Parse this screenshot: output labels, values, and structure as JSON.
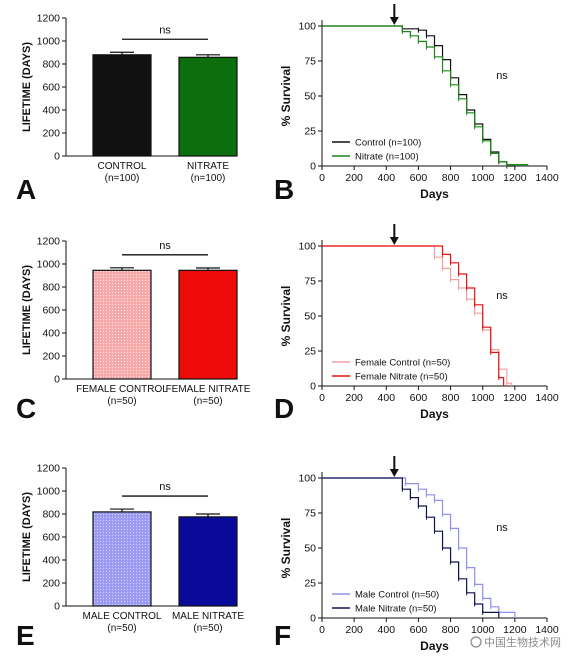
{
  "panels": [
    "A",
    "B",
    "C",
    "D",
    "E",
    "F"
  ],
  "watermark": "中国生物技术网",
  "colors": {
    "control": "#111111",
    "nitrate": "#1a7a1a",
    "female_control": "#f4a0a0",
    "female_nitrate": "#e81010",
    "male_control": "#9090f0",
    "male_nitrate": "#0a0a90",
    "male_nitrate_line": "#101050"
  },
  "chart_data": [
    {
      "type": "bar",
      "panel": "A",
      "categories": [
        "CONTROL",
        "NITRATE"
      ],
      "category_sublabels": [
        "(n=100)",
        "(n=100)"
      ],
      "values": [
        880,
        858
      ],
      "errors": [
        22,
        22
      ],
      "ylabel": "LIFETIME (DAYS)",
      "ylim": [
        0,
        1200
      ],
      "yticks": [
        0,
        200,
        400,
        600,
        800,
        1000,
        1200
      ],
      "annotation": "ns",
      "bar_colors": [
        "#111111",
        "#0d6e0d"
      ]
    },
    {
      "type": "line",
      "panel": "B",
      "xlabel": "Days",
      "ylabel": "% Survival",
      "xlim": [
        0,
        1400
      ],
      "ylim": [
        0,
        100
      ],
      "xticks": [
        0,
        200,
        400,
        600,
        800,
        1000,
        1200,
        1400
      ],
      "yticks": [
        0,
        25,
        50,
        75,
        100
      ],
      "annotation": "ns",
      "arrow_x": 450,
      "legend_position": "bottom-left",
      "series": [
        {
          "name": "Control (n=100)",
          "color": "#111111",
          "x": [
            0,
            460,
            500,
            600,
            650,
            700,
            750,
            800,
            850,
            900,
            950,
            1000,
            1050,
            1100,
            1150,
            1200
          ],
          "y": [
            100,
            100,
            98,
            97,
            93,
            86,
            76,
            63,
            51,
            40,
            30,
            19,
            10,
            3,
            0,
            0
          ]
        },
        {
          "name": "Nitrate (n=100)",
          "color": "#1a8a1a",
          "x": [
            0,
            450,
            500,
            550,
            600,
            650,
            700,
            750,
            800,
            850,
            900,
            950,
            1000,
            1050,
            1100,
            1150,
            1280
          ],
          "y": [
            100,
            100,
            96,
            93,
            89,
            85,
            78,
            68,
            58,
            48,
            38,
            28,
            18,
            9,
            3,
            1,
            0
          ]
        }
      ]
    },
    {
      "type": "bar",
      "panel": "C",
      "categories": [
        "FEMALE CONTROL",
        "FEMALE NITRATE"
      ],
      "category_sublabels": [
        "(n=50)",
        "(n=50)"
      ],
      "values": [
        945,
        945
      ],
      "errors": [
        22,
        20
      ],
      "ylabel": "LIFETIME (DAYS)",
      "ylim": [
        0,
        1200
      ],
      "yticks": [
        0,
        200,
        400,
        600,
        800,
        1000,
        1200
      ],
      "annotation": "ns",
      "bar_colors": [
        "#f7a8a8",
        "#ef0a0a"
      ]
    },
    {
      "type": "line",
      "panel": "D",
      "xlabel": "Days",
      "ylabel": "% Survival",
      "xlim": [
        0,
        1400
      ],
      "ylim": [
        0,
        100
      ],
      "xticks": [
        0,
        200,
        400,
        600,
        800,
        1000,
        1200,
        1400
      ],
      "yticks": [
        0,
        25,
        50,
        75,
        100
      ],
      "annotation": "ns",
      "arrow_x": 450,
      "legend_position": "bottom-left",
      "series": [
        {
          "name": "Female Control (n=50)",
          "color": "#f4a0a0",
          "x": [
            0,
            650,
            700,
            750,
            800,
            850,
            900,
            950,
            1000,
            1050,
            1100,
            1150,
            1180
          ],
          "y": [
            100,
            100,
            92,
            84,
            76,
            70,
            62,
            52,
            40,
            26,
            12,
            2,
            0
          ]
        },
        {
          "name": "Female Nitrate (n=50)",
          "color": "#e81010",
          "x": [
            0,
            700,
            750,
            800,
            850,
            900,
            950,
            1000,
            1050,
            1100,
            1130
          ],
          "y": [
            100,
            100,
            94,
            88,
            80,
            70,
            58,
            42,
            24,
            6,
            0
          ]
        }
      ]
    },
    {
      "type": "bar",
      "panel": "E",
      "categories": [
        "MALE CONTROL",
        "MALE NITRATE"
      ],
      "category_sublabels": [
        "(n=50)",
        "(n=50)"
      ],
      "values": [
        818,
        775
      ],
      "errors": [
        25,
        25
      ],
      "ylabel": "LIFETIME (DAYS)",
      "ylim": [
        0,
        1200
      ],
      "yticks": [
        0,
        200,
        400,
        600,
        800,
        1000,
        1200
      ],
      "annotation": "ns",
      "bar_colors": [
        "#9a9af2",
        "#0a0a9a"
      ]
    },
    {
      "type": "line",
      "panel": "F",
      "xlabel": "Days",
      "ylabel": "% Survival",
      "xlim": [
        0,
        1400
      ],
      "ylim": [
        0,
        100
      ],
      "xticks": [
        0,
        200,
        400,
        600,
        800,
        1000,
        1200,
        1400
      ],
      "yticks": [
        0,
        25,
        50,
        75,
        100
      ],
      "annotation": "ns",
      "arrow_x": 450,
      "legend_position": "bottom-left",
      "series": [
        {
          "name": "Male Control (n=50)",
          "color": "#9090f0",
          "x": [
            0,
            460,
            520,
            600,
            650,
            700,
            750,
            800,
            850,
            900,
            950,
            1000,
            1050,
            1100,
            1200
          ],
          "y": [
            100,
            100,
            96,
            92,
            88,
            84,
            74,
            64,
            50,
            36,
            24,
            14,
            8,
            4,
            0
          ]
        },
        {
          "name": "Male Nitrate (n=50)",
          "color": "#101050",
          "x": [
            0,
            450,
            500,
            550,
            600,
            650,
            700,
            750,
            800,
            850,
            900,
            950,
            1000,
            1100
          ],
          "y": [
            100,
            100,
            92,
            86,
            80,
            72,
            62,
            50,
            40,
            28,
            18,
            10,
            4,
            0
          ]
        }
      ]
    }
  ]
}
